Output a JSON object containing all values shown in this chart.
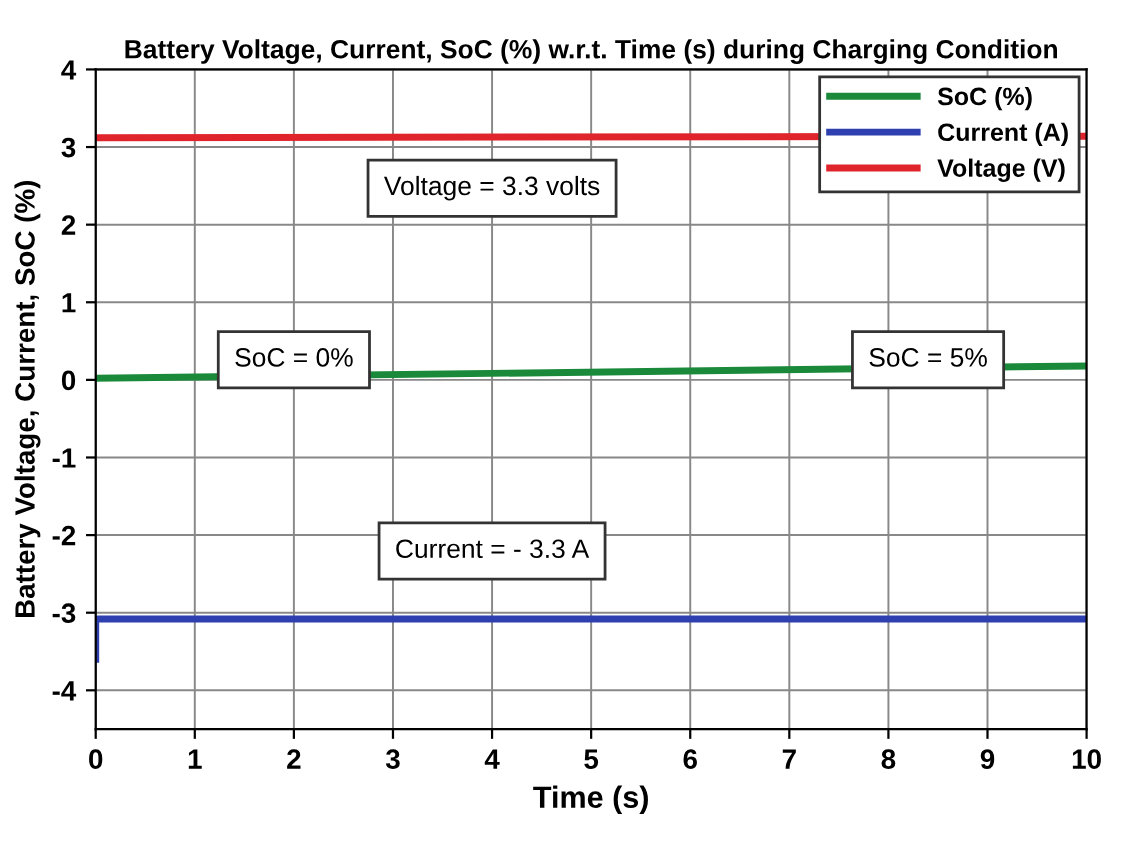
{
  "chart_data": {
    "type": "line",
    "title": "Battery Voltage, Current, SoC (%) w.r.t. Time (s) during Charging Condition",
    "xlabel": "Time (s)",
    "ylabel": "Battery Voltage, Current, SoC (%)",
    "series": [
      {
        "name": "SoC (%)",
        "color": "#1a8a3a",
        "x": [
          0,
          10
        ],
        "values": [
          0.02,
          0.18
        ]
      },
      {
        "name": "Current (A)",
        "color": "#2e3fb0",
        "x": [
          0,
          0,
          0.02,
          10
        ],
        "values": [
          -3.6,
          -3.1,
          -3.08,
          -3.08
        ]
      },
      {
        "name": "Voltage (V)",
        "color": "#e0242c",
        "x": [
          0,
          10
        ],
        "values": [
          3.12,
          3.14
        ]
      }
    ],
    "xlim": [
      0,
      10
    ],
    "xticks": [
      0,
      1,
      2,
      3,
      4,
      5,
      6,
      7,
      8,
      9,
      10
    ],
    "ylim": [
      -4.5,
      4
    ],
    "yticks": [
      -4,
      -3,
      -2,
      -1,
      0,
      1,
      2,
      3,
      4
    ],
    "annotations": [
      "Voltage = 3.3 volts",
      "SoC = 0%",
      "SoC = 5%",
      "Current = - 3.3 A"
    ],
    "grid": true,
    "legend": "top right",
    "line_style": "solid",
    "marker": "none"
  }
}
